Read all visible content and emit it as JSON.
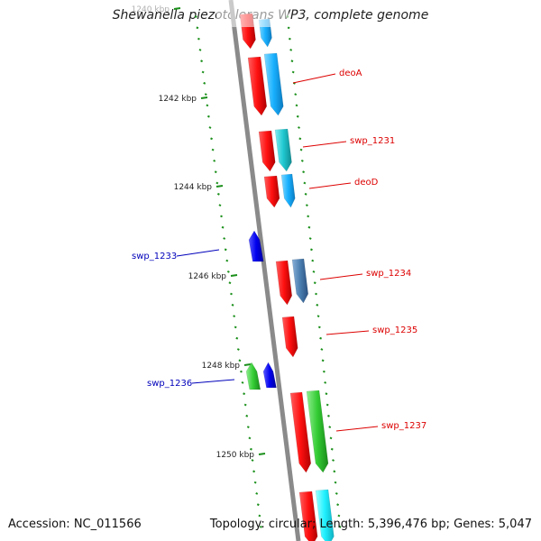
{
  "title": "Shewanella piezotolerans WP3, complete genome",
  "accession_text": "Accession: NC_011566",
  "topology_text": "Topology: circular; Length: 5,396,476 bp; Genes: 5,047",
  "colors": {
    "backbone": "#8a8a8a",
    "tick": "#1a8f1a",
    "forward_cds": "#ff1a1a",
    "forward_blue": "#1ab2ff",
    "forward_cyan": "#20c8d0",
    "forward_steel": "#4a7eb0",
    "forward_green": "#33cc33",
    "reverse_cds": "#0000ee",
    "reverse_green": "#33cc33",
    "label_forward": "#dd0000",
    "label_reverse": "#0000bb"
  },
  "ruler": {
    "labels": [
      "1240 kbp",
      "1242 kbp",
      "1244 kbp",
      "1246 kbp",
      "1248 kbp",
      "1250 kbp"
    ]
  },
  "features": [
    {
      "label": "",
      "strand": "forward",
      "tracks": [
        "red",
        "blue"
      ]
    },
    {
      "label": "deoA",
      "strand": "forward",
      "tracks": [
        "red",
        "blue"
      ]
    },
    {
      "label": "swp_1231",
      "strand": "forward",
      "tracks": [
        "red",
        "cyan"
      ]
    },
    {
      "label": "deoD",
      "strand": "forward",
      "tracks": [
        "red",
        "blue"
      ]
    },
    {
      "label": "swp_1233",
      "strand": "reverse",
      "tracks": [
        "blue"
      ]
    },
    {
      "label": "swp_1234",
      "strand": "forward",
      "tracks": [
        "red",
        "steel"
      ]
    },
    {
      "label": "swp_1235",
      "strand": "forward",
      "tracks": [
        "red"
      ]
    },
    {
      "label": "swp_1236",
      "strand": "reverse",
      "tracks": [
        "green",
        "blue"
      ]
    },
    {
      "label": "swp_1237",
      "strand": "forward",
      "tracks": [
        "red",
        "green"
      ]
    },
    {
      "label": "",
      "strand": "forward",
      "tracks": [
        "red",
        "cyan"
      ]
    }
  ]
}
